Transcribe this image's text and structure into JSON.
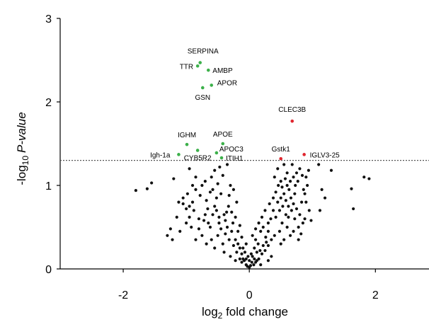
{
  "chart_data": {
    "type": "scatter",
    "title": "",
    "xlabel_parts": {
      "pre": "log",
      "sub": "2",
      "post": " fold change"
    },
    "ylabel_parts": {
      "pre": "-log",
      "sub": "10",
      "italic": "P-value"
    },
    "xlim": [
      -3,
      2.85
    ],
    "ylim": [
      0,
      3
    ],
    "x_ticks": [
      -2,
      0,
      2
    ],
    "y_ticks": [
      0,
      1,
      2,
      3
    ],
    "x_tick_labels": [
      "-2",
      "0",
      "2"
    ],
    "y_tick_labels": [
      "0",
      "1",
      "2",
      "3"
    ],
    "threshold_y": 1.3,
    "grid": false,
    "colors": {
      "down_sig": "#3cb04a",
      "up_sig": "#e0262f",
      "nonsig": "#111111",
      "threshold": "#555555"
    },
    "labeled_points": [
      {
        "label": "SERPINA",
        "x": -0.78,
        "y": 2.47,
        "group": "down_sig"
      },
      {
        "label": "TTR",
        "x": -0.82,
        "y": 2.43,
        "group": "down_sig"
      },
      {
        "label": "AMBP",
        "x": -0.65,
        "y": 2.38,
        "group": "down_sig"
      },
      {
        "label": "APOR",
        "x": -0.6,
        "y": 2.2,
        "group": "down_sig"
      },
      {
        "label": "GSN",
        "x": -0.74,
        "y": 2.17,
        "group": "down_sig"
      },
      {
        "label": "CLEC3B",
        "x": 0.68,
        "y": 1.77,
        "group": "up_sig"
      },
      {
        "label": "IGHM",
        "x": -0.99,
        "y": 1.49,
        "group": "down_sig"
      },
      {
        "label": "APOE",
        "x": -0.42,
        "y": 1.5,
        "group": "down_sig"
      },
      {
        "label": "Igh-1a",
        "x": -1.12,
        "y": 1.37,
        "group": "down_sig"
      },
      {
        "label": "CYB5R2",
        "x": -0.82,
        "y": 1.42,
        "group": "down_sig"
      },
      {
        "label": "APOC3",
        "x": -0.52,
        "y": 1.39,
        "group": "down_sig"
      },
      {
        "label": "ITIH1",
        "x": -0.44,
        "y": 1.33,
        "group": "down_sig"
      },
      {
        "label": "Gstk1",
        "x": 0.5,
        "y": 1.32,
        "group": "up_sig"
      },
      {
        "label": "IGLV3-25",
        "x": 0.87,
        "y": 1.37,
        "group": "up_sig"
      }
    ],
    "points": [
      [
        -1.8,
        0.94
      ],
      [
        -1.62,
        0.96
      ],
      [
        -1.55,
        1.03
      ],
      [
        -1.2,
        1.08
      ],
      [
        -1.12,
        0.8
      ],
      [
        -0.95,
        1.2
      ],
      [
        -0.9,
        0.8
      ],
      [
        -0.85,
        0.95
      ],
      [
        -0.75,
        1.0
      ],
      [
        -0.68,
        0.82
      ],
      [
        -0.6,
        1.1
      ],
      [
        -1.05,
        0.78
      ],
      [
        -0.98,
        0.9
      ],
      [
        -0.55,
        1.18
      ],
      [
        -0.47,
        1.22
      ],
      [
        -0.35,
        1.25
      ],
      [
        -0.3,
        1.0
      ],
      [
        -0.8,
        0.6
      ],
      [
        -1.0,
        0.55
      ],
      [
        -0.88,
        0.7
      ],
      [
        -0.7,
        0.65
      ],
      [
        -0.55,
        0.75
      ],
      [
        -0.45,
        0.9
      ],
      [
        -0.35,
        0.5
      ],
      [
        -0.28,
        0.45
      ],
      [
        -0.22,
        0.35
      ],
      [
        -0.18,
        0.3
      ],
      [
        -0.15,
        0.25
      ],
      [
        -0.12,
        0.18
      ],
      [
        -0.1,
        0.12
      ],
      [
        -0.08,
        0.1
      ],
      [
        -0.05,
        0.05
      ],
      [
        -0.03,
        0.03
      ],
      [
        0.0,
        0.02
      ],
      [
        0.02,
        0.04
      ],
      [
        0.04,
        0.08
      ],
      [
        -0.2,
        0.2
      ],
      [
        -0.25,
        0.28
      ],
      [
        -0.32,
        0.35
      ],
      [
        -0.38,
        0.42
      ],
      [
        -0.42,
        0.3
      ],
      [
        -0.5,
        0.4
      ],
      [
        -0.62,
        0.5
      ],
      [
        -0.75,
        0.4
      ],
      [
        -0.85,
        0.35
      ],
      [
        -1.1,
        0.45
      ],
      [
        -1.22,
        0.35
      ],
      [
        -1.3,
        0.4
      ],
      [
        -0.65,
        0.55
      ],
      [
        -0.58,
        0.65
      ],
      [
        -0.52,
        0.7
      ],
      [
        -0.48,
        0.55
      ],
      [
        -0.4,
        0.65
      ],
      [
        -0.33,
        0.75
      ],
      [
        -0.26,
        0.55
      ],
      [
        -0.18,
        0.45
      ],
      [
        -0.12,
        0.38
      ],
      [
        -0.07,
        0.2
      ],
      [
        -0.15,
        0.12
      ],
      [
        -0.22,
        0.1
      ],
      [
        -0.05,
        0.3
      ],
      [
        0.05,
        0.15
      ],
      [
        0.08,
        0.25
      ],
      [
        0.1,
        0.35
      ],
      [
        0.14,
        0.3
      ],
      [
        0.18,
        0.45
      ],
      [
        0.22,
        0.5
      ],
      [
        0.26,
        0.38
      ],
      [
        0.3,
        0.55
      ],
      [
        0.34,
        0.6
      ],
      [
        0.38,
        0.7
      ],
      [
        0.42,
        0.62
      ],
      [
        0.45,
        0.8
      ],
      [
        0.5,
        0.85
      ],
      [
        0.55,
        0.9
      ],
      [
        0.6,
        1.0
      ],
      [
        0.65,
        1.05
      ],
      [
        0.7,
        1.1
      ],
      [
        0.75,
        1.15
      ],
      [
        0.8,
        1.2
      ],
      [
        0.72,
        0.9
      ],
      [
        0.62,
        0.75
      ],
      [
        0.58,
        0.65
      ],
      [
        0.52,
        0.55
      ],
      [
        0.48,
        0.45
      ],
      [
        0.4,
        0.4
      ],
      [
        0.35,
        0.35
      ],
      [
        0.3,
        0.28
      ],
      [
        0.25,
        0.22
      ],
      [
        0.2,
        0.18
      ],
      [
        0.15,
        0.12
      ],
      [
        0.1,
        0.08
      ],
      [
        0.07,
        0.05
      ],
      [
        0.12,
        0.2
      ],
      [
        0.4,
        1.1
      ],
      [
        0.45,
        1.2
      ],
      [
        0.55,
        1.25
      ],
      [
        0.6,
        1.15
      ],
      [
        0.68,
        1.25
      ],
      [
        0.72,
        0.6
      ],
      [
        0.78,
        0.5
      ],
      [
        0.85,
        0.55
      ],
      [
        0.88,
        0.6
      ],
      [
        0.9,
        0.8
      ],
      [
        0.92,
        1.0
      ],
      [
        0.95,
        0.7
      ],
      [
        0.5,
        0.3
      ],
      [
        0.55,
        0.35
      ],
      [
        1.1,
        1.25
      ],
      [
        1.15,
        0.95
      ],
      [
        1.2,
        0.85
      ],
      [
        1.12,
        0.7
      ],
      [
        0.98,
        0.58
      ],
      [
        1.3,
        1.18
      ],
      [
        1.62,
        0.96
      ],
      [
        1.65,
        0.72
      ],
      [
        1.82,
        1.1
      ],
      [
        1.9,
        1.08
      ],
      [
        0.3,
        0.1
      ],
      [
        0.35,
        0.15
      ],
      [
        0.18,
        0.05
      ],
      [
        -0.3,
        0.15
      ],
      [
        -0.4,
        0.2
      ],
      [
        -0.55,
        0.25
      ],
      [
        -0.68,
        0.3
      ],
      [
        -0.95,
        0.62
      ],
      [
        -1.05,
        0.85
      ],
      [
        -1.0,
        0.72
      ],
      [
        -0.92,
        0.5
      ],
      [
        -0.6,
        0.35
      ],
      [
        -0.45,
        0.48
      ],
      [
        -0.38,
        0.58
      ],
      [
        -0.28,
        0.68
      ],
      [
        -0.22,
        0.62
      ],
      [
        -0.15,
        0.52
      ],
      [
        0.05,
        0.4
      ],
      [
        0.1,
        0.48
      ],
      [
        0.15,
        0.55
      ],
      [
        0.2,
        0.62
      ],
      [
        0.25,
        0.7
      ],
      [
        0.32,
        0.78
      ],
      [
        0.38,
        0.85
      ],
      [
        0.42,
        0.92
      ],
      [
        0.46,
        1.0
      ],
      [
        0.5,
        1.05
      ],
      [
        0.52,
        0.98
      ],
      [
        0.57,
        1.08
      ],
      [
        0.63,
        0.95
      ],
      [
        0.66,
        0.85
      ],
      [
        0.7,
        0.78
      ],
      [
        0.75,
        0.72
      ],
      [
        0.8,
        0.65
      ],
      [
        0.83,
        0.8
      ],
      [
        0.86,
        0.95
      ],
      [
        0.9,
        1.1
      ],
      [
        0.94,
        1.18
      ],
      [
        0.3,
        0.45
      ],
      [
        0.27,
        0.32
      ],
      [
        0.22,
        0.28
      ],
      [
        0.17,
        0.22
      ],
      [
        -0.1,
        0.25
      ],
      [
        -0.02,
        0.15
      ],
      [
        -0.7,
        1.05
      ],
      [
        -0.78,
        0.88
      ],
      [
        -0.62,
        0.92
      ],
      [
        -0.5,
        1.02
      ],
      [
        -0.42,
        1.12
      ],
      [
        -0.85,
        1.1
      ],
      [
        -0.9,
        1.0
      ],
      [
        -0.95,
        0.75
      ],
      [
        -1.15,
        0.62
      ],
      [
        -1.25,
        0.48
      ],
      [
        0.6,
        0.5
      ],
      [
        0.65,
        0.4
      ],
      [
        0.7,
        0.45
      ],
      [
        0.78,
        0.35
      ],
      [
        0.82,
        0.42
      ],
      [
        0.08,
        0.12
      ],
      [
        -0.12,
        0.08
      ],
      [
        0.0,
        0.1
      ],
      [
        0.03,
        0.18
      ],
      [
        -0.05,
        0.12
      ],
      [
        0.12,
        0.1
      ],
      [
        0.48,
        0.7
      ],
      [
        0.53,
        0.75
      ],
      [
        0.58,
        0.82
      ],
      [
        0.62,
        0.62
      ],
      [
        0.67,
        0.7
      ],
      [
        0.73,
        1.0
      ],
      [
        0.77,
        1.05
      ],
      [
        0.84,
        1.12
      ],
      [
        0.88,
        0.9
      ],
      [
        -0.2,
        0.8
      ],
      [
        -0.25,
        0.95
      ],
      [
        -0.32,
        0.88
      ],
      [
        -0.36,
        0.68
      ],
      [
        -0.48,
        0.62
      ],
      [
        -0.52,
        0.85
      ],
      [
        -0.58,
        0.95
      ],
      [
        -0.66,
        0.72
      ],
      [
        -0.72,
        0.58
      ],
      [
        -0.8,
        0.48
      ]
    ]
  }
}
